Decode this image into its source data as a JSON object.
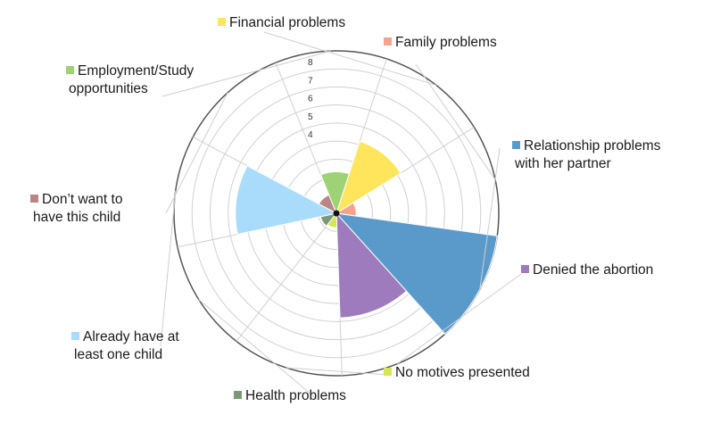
{
  "chart_data": {
    "type": "polar-area",
    "title": "",
    "r_ticks": [
      "1",
      "2",
      "3",
      "4",
      "5",
      "6",
      "7",
      "8"
    ],
    "r_tick_labels_shown": [
      "4",
      "5",
      "6",
      "7",
      "8"
    ],
    "rmax": 9,
    "grid": true,
    "categories": [
      {
        "name": "Financial problems",
        "lines": [
          "Financial problems"
        ],
        "value": 4.2,
        "color": "#ffe55c"
      },
      {
        "name": "Family problems",
        "lines": [
          "Family problems"
        ],
        "value": 1.1,
        "color": "#f6a38e"
      },
      {
        "name": "Relationship problems with her partner",
        "lines": [
          "Relationship problems",
          "with her partner"
        ],
        "value": 9.0,
        "color": "#5a9acb"
      },
      {
        "name": "Denied the abortion",
        "lines": [
          "Denied the abortion"
        ],
        "value": 5.8,
        "color": "#9e7bbc"
      },
      {
        "name": "No motives presented",
        "lines": [
          "No motives presented"
        ],
        "value": 0.8,
        "color": "#d5e650"
      },
      {
        "name": "Health problems",
        "lines": [
          "Health problems"
        ],
        "value": 0.9,
        "color": "#7d9877"
      },
      {
        "name": "Already have at least one child",
        "lines": [
          "Already have at",
          "least one child"
        ],
        "value": 5.6,
        "color": "#a9dcfa"
      },
      {
        "name": "Don't want to have this child",
        "lines": [
          "Don’t want to",
          "have this child"
        ],
        "value": 1.1,
        "color": "#b88686"
      },
      {
        "name": "Employment/Study opportunities",
        "lines": [
          "Employment/Study",
          "opportunities"
        ],
        "value": 2.3,
        "color": "#9fd275"
      }
    ]
  }
}
